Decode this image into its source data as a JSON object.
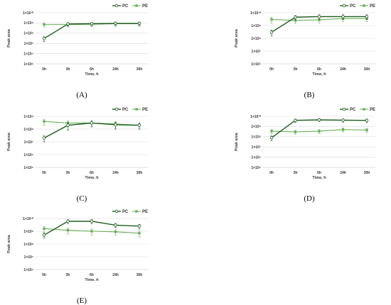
{
  "chart_data": [
    {
      "type": "line",
      "label": "(A)",
      "categories": [
        "0h",
        "3h",
        "6h",
        "24h",
        "30h"
      ],
      "xlabel": "Time, h",
      "ylabel": "Peak area",
      "yscale": "log",
      "ylim": [
        100000,
        10000000000
      ],
      "yticks": [
        "1×10⁵",
        "1×10⁶",
        "1×10⁷",
        "1×10⁸",
        "1×10⁹",
        "1×10¹⁰"
      ],
      "legend": "top-right",
      "series": [
        {
          "name": "PC",
          "values": [
            30000000,
            800000000,
            850000000,
            900000000,
            900000000
          ],
          "err": [
            15000000,
            300000000,
            300000000,
            350000000,
            350000000
          ]
        },
        {
          "name": "PE",
          "values": [
            700000000,
            700000000,
            750000000,
            850000000,
            850000000
          ],
          "err": [
            300000000,
            300000000,
            300000000,
            350000000,
            350000000
          ]
        }
      ]
    },
    {
      "type": "line",
      "label": "(B)",
      "categories": [
        "0h",
        "3h",
        "6h",
        "24h",
        "30h"
      ],
      "xlabel": "Time, h",
      "ylabel": "Peak area",
      "yscale": "log",
      "ylim": [
        1000000,
        10000000000
      ],
      "yticks": [
        "1×10⁶",
        "1×10⁷",
        "1×10⁸",
        "1×10⁹",
        "1×10¹⁰"
      ],
      "legend": "top-right",
      "series": [
        {
          "name": "PC",
          "values": [
            300000000,
            4500000000,
            5000000000,
            5000000000,
            5000000000
          ],
          "err": [
            150000000,
            1500000000,
            2000000000,
            2000000000,
            2000000000
          ]
        },
        {
          "name": "PE",
          "values": [
            3000000000,
            2500000000,
            2800000000,
            3500000000,
            3500000000
          ],
          "err": [
            1500000000,
            1000000000,
            1200000000,
            1500000000,
            1500000000
          ]
        }
      ]
    },
    {
      "type": "line",
      "label": "(C)",
      "categories": [
        "0h",
        "3h",
        "6h",
        "24h",
        "30h"
      ],
      "xlabel": "Time, h",
      "ylabel": "Peak area",
      "yscale": "log",
      "ylim": [
        100000,
        1000000000
      ],
      "yticks": [
        "1×10⁵",
        "1×10⁶",
        "1×10⁷",
        "1×10⁸",
        "1×10⁹"
      ],
      "legend": "top-right",
      "series": [
        {
          "name": "PC",
          "values": [
            20000000,
            200000000,
            300000000,
            220000000,
            200000000
          ],
          "err": [
            10000000,
            120000000,
            150000000,
            120000000,
            100000000
          ]
        },
        {
          "name": "PE",
          "values": [
            400000000,
            300000000,
            300000000,
            250000000,
            200000000
          ],
          "err": [
            200000000,
            150000000,
            150000000,
            120000000,
            100000000
          ]
        }
      ]
    },
    {
      "type": "line",
      "label": "(D)",
      "categories": [
        "0h",
        "3h",
        "6h",
        "24h",
        "30h"
      ],
      "xlabel": "Time, h",
      "ylabel": "Peak area",
      "yscale": "log",
      "ylim": [
        100000,
        10000000000
      ],
      "yticks": [
        "1×10⁵",
        "1×10⁶",
        "1×10⁷",
        "1×10⁸",
        "1×10⁹",
        "1×10¹⁰"
      ],
      "legend": "top-right",
      "series": [
        {
          "name": "PC",
          "values": [
            80000000,
            4000000000,
            4500000000,
            4200000000,
            4000000000
          ],
          "err": [
            40000000,
            1500000000,
            1500000000,
            1500000000,
            1500000000
          ]
        },
        {
          "name": "PE",
          "values": [
            350000000,
            300000000,
            350000000,
            500000000,
            450000000
          ],
          "err": [
            150000000,
            120000000,
            150000000,
            200000000,
            200000000
          ]
        }
      ]
    },
    {
      "type": "line",
      "label": "(E)",
      "categories": [
        "0h",
        "3h",
        "6h",
        "24h",
        "30h"
      ],
      "xlabel": "Time, h",
      "ylabel": "Peak area",
      "yscale": "log",
      "ylim": [
        1000000,
        10000000000
      ],
      "yticks": [
        "1×10⁶",
        "1×10⁷",
        "1×10⁸",
        "1×10⁹",
        "1×10¹⁰"
      ],
      "legend": "top-right",
      "series": [
        {
          "name": "PC",
          "values": [
            500000000,
            6000000000,
            6000000000,
            3000000000,
            2500000000
          ],
          "err": [
            200000000,
            2000000000,
            2000000000,
            1000000000,
            1000000000
          ]
        },
        {
          "name": "PE",
          "values": [
            1600000000,
            1200000000,
            1000000000,
            900000000,
            700000000
          ],
          "err": [
            800000000,
            600000000,
            500000000,
            400000000,
            350000000
          ]
        }
      ]
    }
  ],
  "colors": {
    "PC": "#1e5c1e",
    "PE": "#6cae5b",
    "grid": "#d9d9d9",
    "axis": "#bfbfbf"
  }
}
